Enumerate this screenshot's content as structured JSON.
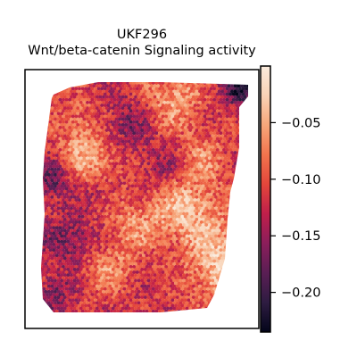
{
  "chart_data": {
    "type": "heatmap",
    "title_line1": "UKF296",
    "title_line2": "Wnt/beta-catenin Signaling activity",
    "xlabel": "",
    "ylabel": "",
    "colormap": "rocket",
    "colormap_stops": [
      "#03051a",
      "#2e1c41",
      "#5a1e54",
      "#8b1e5b",
      "#c01f4a",
      "#e3463b",
      "#f2744d",
      "#f6a67a",
      "#f9d2b6",
      "#faebdd"
    ],
    "colorbar": {
      "vmin": -0.235,
      "vmax": 0.0,
      "ticks": [
        -0.05,
        -0.1,
        -0.15,
        -0.2
      ],
      "tick_labels": [
        "−0.05",
        "−0.10",
        "−0.15",
        "−0.20"
      ]
    },
    "tissue_median_value": -0.12,
    "high_activity_regions": [
      "lower-right edge",
      "upper-center",
      "left-middle"
    ],
    "low_activity_regions": [
      "left edge",
      "lower-left",
      "top-right corner"
    ]
  }
}
